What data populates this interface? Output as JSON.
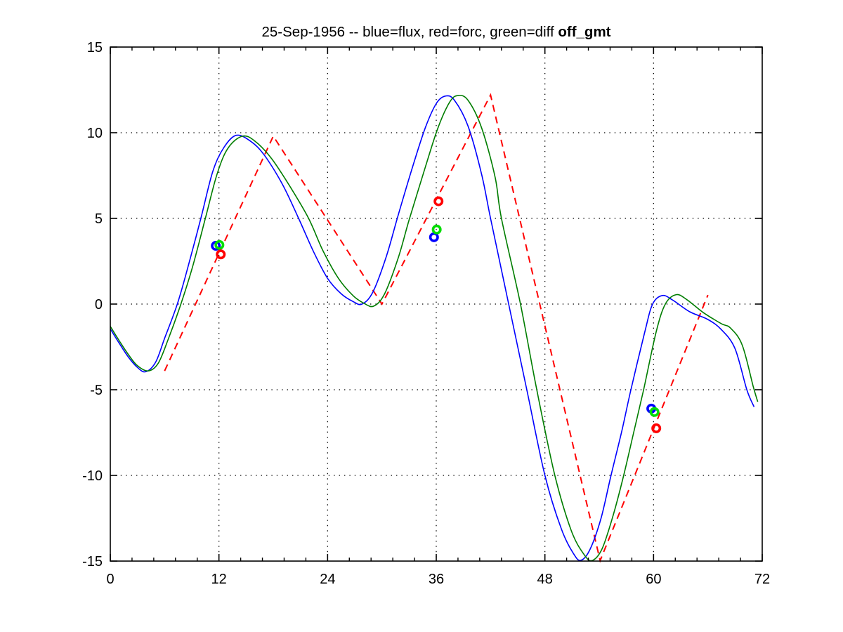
{
  "chart_data": {
    "type": "line",
    "title_main": "25-Sep-1956 -- blue=flux, red=forc, green=diff ",
    "title_bold": "off_gmt",
    "xlabel": "",
    "ylabel": "",
    "xlim": [
      0,
      72
    ],
    "ylim": [
      -15,
      15
    ],
    "xticks": [
      0,
      12,
      24,
      36,
      48,
      60,
      72
    ],
    "xminor_step": 2.4,
    "yticks": [
      -15,
      -10,
      -5,
      0,
      5,
      10,
      15
    ],
    "grid": "dotted-at-major-ticks",
    "legend": "encoded-in-title",
    "axis_color": "#000000",
    "background": "#ffffff",
    "series": [
      {
        "name": "forc",
        "color": "#ff0000",
        "style": "dashed",
        "points": [
          [
            6,
            -3.9
          ],
          [
            18,
            9.8
          ],
          [
            30,
            0
          ],
          [
            42,
            12.2
          ],
          [
            54.1,
            -14.97
          ],
          [
            66,
            0.53
          ]
        ]
      },
      {
        "name": "flux",
        "color": "#0000ff",
        "style": "solid",
        "points": [
          [
            0,
            -1.45
          ],
          [
            1,
            -2.3
          ],
          [
            2,
            -3.1
          ],
          [
            3,
            -3.7
          ],
          [
            3.9,
            -3.95
          ],
          [
            5,
            -3.4
          ],
          [
            6,
            -2.0
          ],
          [
            7.4,
            0
          ],
          [
            8.6,
            2.2
          ],
          [
            10,
            5
          ],
          [
            11.3,
            7.7
          ],
          [
            12.5,
            9.1
          ],
          [
            13.9,
            9.85
          ],
          [
            15.5,
            9.5
          ],
          [
            17,
            8.7
          ],
          [
            19,
            7.0
          ],
          [
            20.8,
            5.0
          ],
          [
            22.5,
            3.0
          ],
          [
            24,
            1.5
          ],
          [
            25.5,
            0.6
          ],
          [
            26.8,
            0.15
          ],
          [
            27.8,
            0
          ],
          [
            29,
            0.7
          ],
          [
            30.5,
            2.8
          ],
          [
            31.8,
            5.2
          ],
          [
            33.5,
            8.2
          ],
          [
            34.8,
            10.3
          ],
          [
            36,
            11.7
          ],
          [
            37,
            12.14
          ],
          [
            38,
            11.9
          ],
          [
            39.5,
            10.4
          ],
          [
            41,
            7.6
          ],
          [
            42,
            5.0
          ],
          [
            44,
            0
          ],
          [
            46,
            -5.0
          ],
          [
            48,
            -10.0
          ],
          [
            49.8,
            -13.1
          ],
          [
            51.2,
            -14.6
          ],
          [
            52,
            -14.95
          ],
          [
            53,
            -14.3
          ],
          [
            54.2,
            -12.5
          ],
          [
            55.3,
            -10.0
          ],
          [
            56.5,
            -7.4
          ],
          [
            57.5,
            -5.0
          ],
          [
            59,
            -1.7
          ],
          [
            59.9,
            0
          ],
          [
            61,
            0.5
          ],
          [
            62.2,
            0.2
          ],
          [
            64,
            -0.45
          ],
          [
            66,
            -0.9
          ],
          [
            67.5,
            -1.5
          ],
          [
            69,
            -2.6
          ],
          [
            70.3,
            -5.0
          ],
          [
            71.1,
            -6.0
          ]
        ]
      },
      {
        "name": "diff",
        "color": "#007d00",
        "style": "solid",
        "points": [
          [
            0,
            -1.3
          ],
          [
            1,
            -2.15
          ],
          [
            2,
            -2.95
          ],
          [
            3,
            -3.6
          ],
          [
            4.2,
            -3.9
          ],
          [
            5.3,
            -3.45
          ],
          [
            6.4,
            -2.05
          ],
          [
            7.8,
            0
          ],
          [
            9.1,
            2.2
          ],
          [
            10.5,
            5
          ],
          [
            11.8,
            7.6
          ],
          [
            13,
            9.1
          ],
          [
            14.6,
            9.8
          ],
          [
            16,
            9.5
          ],
          [
            17.8,
            8.5
          ],
          [
            19.8,
            6.9
          ],
          [
            21.9,
            5.0
          ],
          [
            23.5,
            3.1
          ],
          [
            25.2,
            1.5
          ],
          [
            26.8,
            0.5
          ],
          [
            28,
            0.05
          ],
          [
            29.1,
            -0.12
          ],
          [
            30.3,
            0.6
          ],
          [
            31.8,
            2.7
          ],
          [
            33,
            4.9
          ],
          [
            34.8,
            8.0
          ],
          [
            36.2,
            10.3
          ],
          [
            37.5,
            11.8
          ],
          [
            38.4,
            12.17
          ],
          [
            39.5,
            11.9
          ],
          [
            41,
            10.3
          ],
          [
            42.5,
            7.4
          ],
          [
            43.2,
            5.0
          ],
          [
            45.3,
            0
          ],
          [
            47.1,
            -5.0
          ],
          [
            49.1,
            -10.0
          ],
          [
            50.9,
            -13.2
          ],
          [
            52.3,
            -14.6
          ],
          [
            53.2,
            -14.97
          ],
          [
            54.3,
            -14.3
          ],
          [
            55.5,
            -12.4
          ],
          [
            56.7,
            -10.0
          ],
          [
            57.8,
            -7.5
          ],
          [
            58.9,
            -5.0
          ],
          [
            60.3,
            -1.6
          ],
          [
            61.3,
            0
          ],
          [
            62.5,
            0.55
          ],
          [
            63.7,
            0.25
          ],
          [
            65.5,
            -0.5
          ],
          [
            67.5,
            -1.15
          ],
          [
            68.5,
            -1.4
          ],
          [
            69.8,
            -2.4
          ],
          [
            71,
            -4.8
          ],
          [
            71.5,
            -5.7
          ]
        ]
      }
    ],
    "markers": [
      {
        "name": "flux-markers",
        "color": "#0000ff",
        "points": [
          [
            11.65,
            3.4
          ],
          [
            35.75,
            3.9
          ],
          [
            59.75,
            -6.1
          ]
        ]
      },
      {
        "name": "diff-markers",
        "color": "#00dd00",
        "points": [
          [
            12.05,
            3.45
          ],
          [
            36.05,
            4.35
          ],
          [
            60.1,
            -6.3
          ]
        ]
      },
      {
        "name": "forc-markers",
        "color": "#ff0000",
        "points": [
          [
            12.2,
            2.9
          ],
          [
            36.25,
            6.0
          ],
          [
            60.3,
            -7.25
          ]
        ]
      }
    ]
  }
}
